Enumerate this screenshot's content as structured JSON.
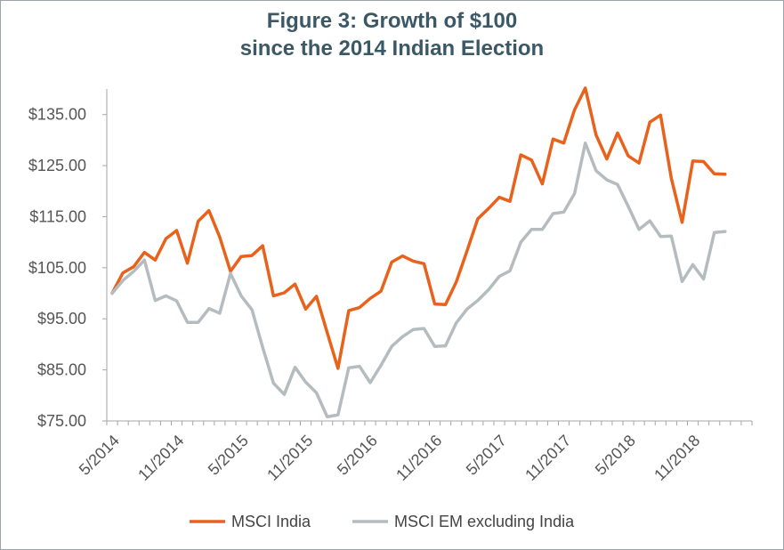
{
  "title_line1": "Figure 3: Growth of $100",
  "title_line2": "since the 2014 Indian Election",
  "chart_data": {
    "type": "line",
    "title": "Figure 3: Growth of $100 since the 2014 Indian Election",
    "xlabel": "",
    "ylabel": "",
    "ylim": [
      75,
      140
    ],
    "y_ticks": [
      "$75.00",
      "$85.00",
      "$95.00",
      "$105.00",
      "$115.00",
      "$125.00",
      "$135.00"
    ],
    "x_ticks": [
      "5/2014",
      "11/2014",
      "5/2015",
      "11/2015",
      "5/2016",
      "11/2016",
      "5/2017",
      "11/2017",
      "5/2018",
      "11/2018"
    ],
    "grid": false,
    "legend_position": "bottom",
    "x": [
      "5/2014",
      "6/2014",
      "7/2014",
      "8/2014",
      "9/2014",
      "10/2014",
      "11/2014",
      "12/2014",
      "1/2015",
      "2/2015",
      "3/2015",
      "4/2015",
      "5/2015",
      "6/2015",
      "7/2015",
      "8/2015",
      "9/2015",
      "10/2015",
      "11/2015",
      "12/2015",
      "1/2016",
      "2/2016",
      "3/2016",
      "4/2016",
      "5/2016",
      "6/2016",
      "7/2016",
      "8/2016",
      "9/2016",
      "10/2016",
      "11/2016",
      "12/2016",
      "1/2017",
      "2/2017",
      "3/2017",
      "4/2017",
      "5/2017",
      "6/2017",
      "7/2017",
      "8/2017",
      "9/2017",
      "10/2017",
      "11/2017",
      "12/2017",
      "1/2018",
      "2/2018",
      "3/2018",
      "4/2018",
      "5/2018",
      "6/2018",
      "7/2018",
      "8/2018",
      "9/2018",
      "10/2018",
      "11/2018",
      "12/2018",
      "1/2019",
      "2/2019",
      "3/2019",
      "4/2019"
    ],
    "series": [
      {
        "name": "MSCI India",
        "color": "#e8621c",
        "values": [
          100.0,
          104.0,
          105.2,
          108.0,
          106.5,
          110.7,
          112.3,
          105.9,
          114.1,
          116.2,
          111.0,
          104.3,
          107.2,
          107.4,
          109.3,
          99.5,
          100.1,
          101.8,
          96.9,
          99.4,
          92.3,
          85.3,
          96.6,
          97.2,
          99.0,
          100.4,
          106.1,
          107.3,
          106.3,
          105.8,
          97.9,
          97.8,
          102.2,
          108.3,
          114.6,
          116.6,
          118.8,
          118.0,
          127.1,
          126.1,
          121.4,
          130.2,
          129.4,
          135.9,
          140.2,
          131.0,
          126.3,
          131.4,
          126.9,
          125.5,
          133.5,
          134.9,
          122.5,
          113.9,
          125.9,
          125.8,
          123.4,
          123.3,
          null,
          null
        ]
      },
      {
        "name": "MSCI EM excluding India",
        "color": "#b4bcc0",
        "values": [
          100.0,
          102.5,
          104.3,
          106.5,
          98.6,
          99.5,
          98.5,
          94.3,
          94.3,
          97.0,
          96.1,
          103.9,
          99.5,
          96.8,
          89.4,
          82.4,
          80.2,
          85.5,
          82.6,
          80.5,
          75.8,
          76.2,
          85.4,
          85.7,
          82.5,
          85.9,
          89.6,
          91.5,
          92.9,
          93.1,
          89.6,
          89.7,
          94.2,
          96.9,
          98.6,
          100.7,
          103.3,
          104.4,
          110.0,
          112.5,
          112.5,
          115.6,
          115.9,
          119.5,
          129.4,
          124.0,
          122.2,
          121.3,
          117.0,
          112.5,
          114.2,
          111.1,
          111.2,
          102.3,
          105.6,
          102.8,
          111.9,
          112.1,
          null,
          null
        ]
      }
    ]
  }
}
